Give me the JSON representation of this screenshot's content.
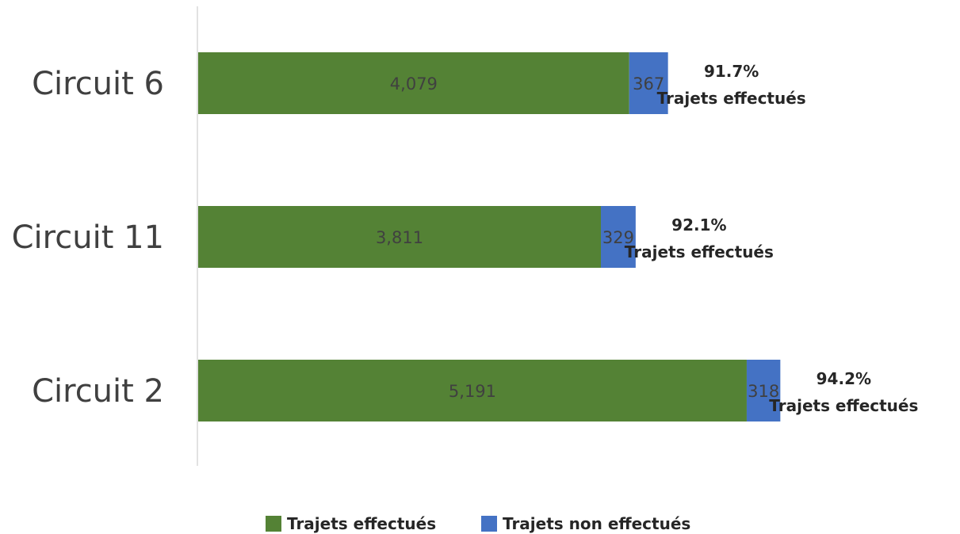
{
  "chart_data": {
    "type": "bar",
    "orientation": "horizontal",
    "stacked": true,
    "categories": [
      "Circuit 6",
      "Circuit 11",
      "Circuit 2"
    ],
    "series": [
      {
        "name": "Trajets effectués",
        "values": [
          4079,
          3811,
          5191
        ],
        "labels": [
          "4,079",
          "3,811",
          "5,191"
        ],
        "color": "#548235"
      },
      {
        "name": "Trajets non effectués",
        "values": [
          367,
          329,
          318
        ],
        "labels": [
          "367",
          "329",
          "318"
        ],
        "color": "#4472C4"
      }
    ],
    "annotations": [
      {
        "percent": "91.7%",
        "text": "Trajets effectués"
      },
      {
        "percent": "92.1%",
        "text": "Trajets effectués"
      },
      {
        "percent": "94.2%",
        "text": "Trajets effectués"
      }
    ],
    "xlim": [
      0,
      5600
    ],
    "grid": false,
    "legend": "bottom"
  }
}
